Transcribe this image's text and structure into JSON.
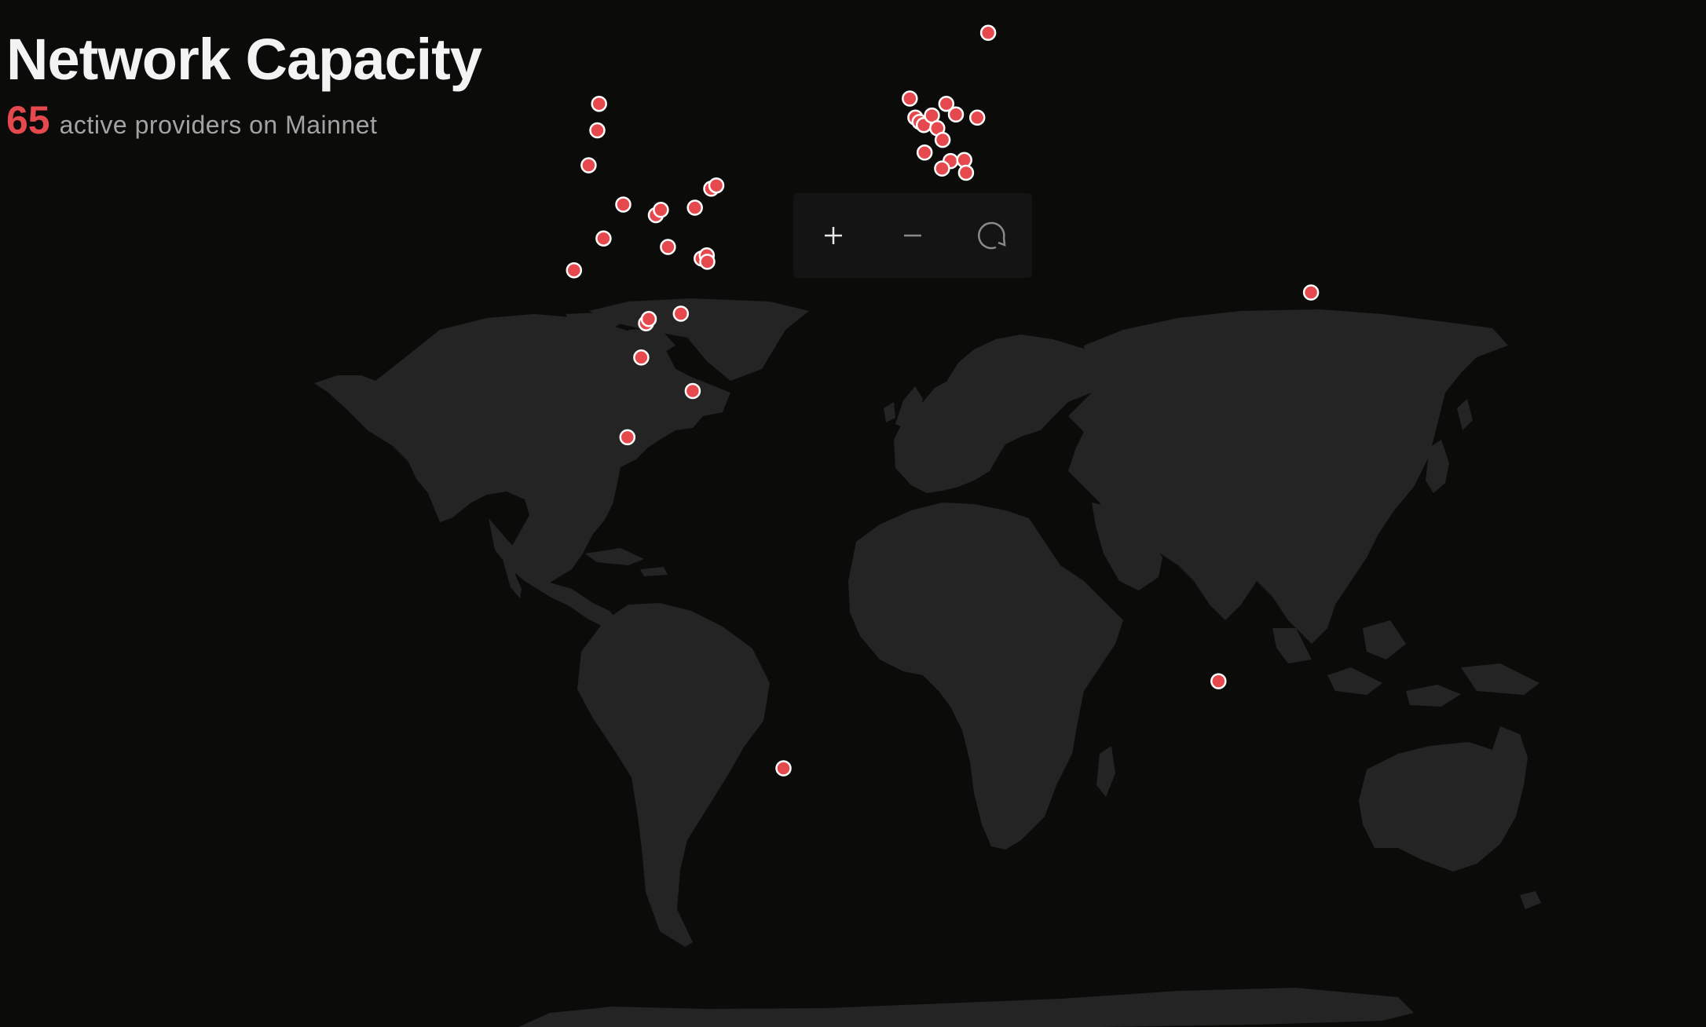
{
  "header": {
    "title": "Network Capacity",
    "provider_count": "65",
    "subtitle": "active providers on Mainnet"
  },
  "controls": {
    "zoom_in_icon": "plus-icon",
    "zoom_out_icon": "minus-icon",
    "reset_icon": "refresh-icon"
  },
  "colors": {
    "background": "#0b0b0a",
    "land": "#242424",
    "marker": "#e5484d",
    "marker_stroke": "#ffffff",
    "title": "#f3f3f3",
    "subtitle": "#a3a3a3",
    "accent": "#e5484d"
  },
  "providers": [
    {
      "lon": -122.4,
      "lat": 37.8
    },
    {
      "lon": -117.2,
      "lat": 47.7
    },
    {
      "lon": -113.5,
      "lat": 53.5
    },
    {
      "lon": -114.1,
      "lat": 51.0
    },
    {
      "lon": -111.9,
      "lat": 40.8
    },
    {
      "lon": -104.9,
      "lat": 44.0
    },
    {
      "lon": -96.8,
      "lat": 32.8
    },
    {
      "lon": -95.8,
      "lat": 33.2
    },
    {
      "lon": -98.5,
      "lat": 29.5
    },
    {
      "lon": -93.3,
      "lat": 43.0
    },
    {
      "lon": -91.5,
      "lat": 43.5
    },
    {
      "lon": -89.0,
      "lat": 40.0
    },
    {
      "lon": -84.4,
      "lat": 33.7
    },
    {
      "lon": -80.2,
      "lat": 25.8
    },
    {
      "lon": -79.4,
      "lat": 43.7
    },
    {
      "lon": -77.0,
      "lat": 38.9
    },
    {
      "lon": -75.2,
      "lat": 39.2
    },
    {
      "lon": -75.0,
      "lat": 38.6
    },
    {
      "lon": -73.6,
      "lat": 45.5
    },
    {
      "lon": -71.8,
      "lat": 45.8
    },
    {
      "lon": -103.4,
      "lat": 20.7
    },
    {
      "lon": -47.9,
      "lat": -15.8
    },
    {
      "lon": -3.0,
      "lat": 54.0
    },
    {
      "lon": -1.0,
      "lat": 52.2
    },
    {
      "lon": 0.5,
      "lat": 51.8
    },
    {
      "lon": 2.0,
      "lat": 51.5
    },
    {
      "lon": 4.9,
      "lat": 52.4
    },
    {
      "lon": 6.8,
      "lat": 51.2
    },
    {
      "lon": 8.7,
      "lat": 50.1
    },
    {
      "lon": 10.0,
      "lat": 53.5
    },
    {
      "lon": 13.4,
      "lat": 52.5
    },
    {
      "lon": 11.5,
      "lat": 48.1
    },
    {
      "lon": 8.5,
      "lat": 47.4
    },
    {
      "lon": 16.4,
      "lat": 48.2
    },
    {
      "lon": 17.0,
      "lat": 47.0
    },
    {
      "lon": 21.0,
      "lat": 52.2
    },
    {
      "lon": 24.9,
      "lat": 60.2
    },
    {
      "lon": 2.3,
      "lat": 48.9
    },
    {
      "lon": -3.7,
      "lat": 40.4
    },
    {
      "lon": 12.5,
      "lat": 41.9
    },
    {
      "lon": 23.7,
      "lat": 42.7
    },
    {
      "lon": 28.9,
      "lat": 41.0
    },
    {
      "lon": 139.7,
      "lat": 35.7
    },
    {
      "lon": 106.8,
      "lat": -6.2
    }
  ]
}
